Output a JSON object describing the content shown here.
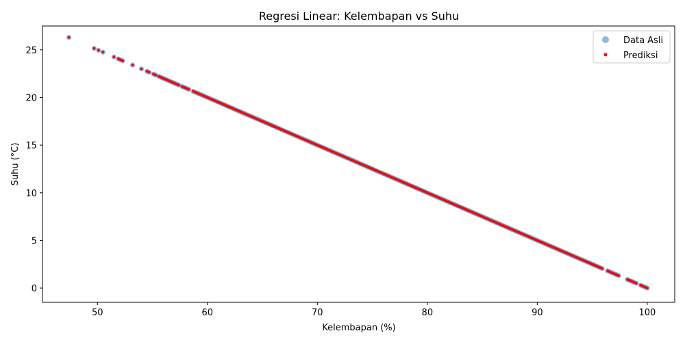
{
  "chart_data": {
    "type": "scatter",
    "title": "Regresi Linear: Kelembapan vs Suhu",
    "xlabel": "Kelembapan (%)",
    "ylabel": "Suhu (°C)",
    "xlim": [
      45,
      102.5
    ],
    "ylim": [
      -1.5,
      27.5
    ],
    "xticks": [
      50,
      60,
      70,
      80,
      90,
      100
    ],
    "yticks": [
      0,
      5,
      10,
      15,
      20,
      25
    ],
    "grid": false,
    "legend_position": "top-right",
    "line": {
      "slope": -0.5,
      "intercept": 50
    },
    "series": [
      {
        "name": "Data Asli",
        "color": "#1f77b4",
        "opacity": 0.5,
        "x": [
          47.4,
          49.7,
          50.1,
          50.5,
          51.5,
          51.9,
          52.1,
          52.3,
          53.2,
          54.0,
          54.5,
          54.7,
          55.1,
          55.3,
          55.6,
          55.8,
          56.0,
          56.2,
          56.4,
          56.6,
          56.8,
          57.0,
          57.2,
          57.4,
          57.7,
          57.9,
          58.1,
          58.3,
          58.7,
          58.9,
          59.1,
          59.3,
          59.5,
          59.7,
          59.9,
          60.1,
          60.3,
          60.5,
          60.7,
          60.9,
          61.1,
          61.3,
          61.5,
          61.7,
          61.9,
          62.1,
          62.3,
          62.5,
          62.7,
          62.9,
          63.1,
          63.3,
          63.5,
          63.7,
          63.9,
          64.1,
          64.3,
          64.5,
          64.7,
          64.9,
          65.1,
          65.3,
          65.5,
          65.7,
          65.9,
          66.1,
          66.3,
          66.5,
          66.7,
          66.9,
          67.1,
          67.3,
          67.5,
          67.7,
          67.9,
          68.1,
          68.3,
          68.5,
          68.7,
          68.9,
          69.1,
          69.3,
          69.5,
          69.7,
          69.9,
          70.1,
          70.3,
          70.5,
          70.7,
          70.9,
          71.1,
          71.3,
          71.5,
          71.7,
          71.9,
          72.1,
          72.3,
          72.5,
          72.7,
          72.9,
          73.1,
          73.3,
          73.5,
          73.7,
          73.9,
          74.1,
          74.3,
          74.5,
          74.7,
          74.9,
          75.1,
          75.3,
          75.5,
          75.7,
          75.9,
          76.1,
          76.3,
          76.5,
          76.7,
          76.9,
          77.1,
          77.3,
          77.5,
          77.7,
          77.9,
          78.1,
          78.3,
          78.5,
          78.7,
          78.9,
          79.1,
          79.3,
          79.5,
          79.7,
          79.9,
          80.1,
          80.3,
          80.5,
          80.7,
          80.9,
          81.1,
          81.3,
          81.5,
          81.7,
          81.9,
          82.1,
          82.3,
          82.5,
          82.7,
          82.9,
          83.1,
          83.3,
          83.5,
          83.7,
          83.9,
          84.1,
          84.3,
          84.5,
          84.7,
          84.9,
          85.1,
          85.3,
          85.5,
          85.7,
          85.9,
          86.1,
          86.3,
          86.5,
          86.7,
          86.9,
          87.1,
          87.3,
          87.5,
          87.7,
          87.9,
          88.1,
          88.3,
          88.5,
          88.7,
          88.9,
          89.1,
          89.3,
          89.5,
          89.7,
          89.9,
          90.1,
          90.3,
          90.5,
          90.7,
          90.9,
          91.1,
          91.3,
          91.5,
          91.7,
          91.9,
          92.1,
          92.3,
          92.5,
          92.7,
          92.9,
          93.1,
          93.3,
          93.5,
          93.7,
          93.9,
          94.1,
          94.3,
          94.5,
          94.7,
          94.9,
          95.1,
          95.3,
          95.5,
          95.7,
          95.9,
          96.4,
          96.6,
          96.8,
          97.0,
          97.2,
          97.4,
          98.2,
          98.4,
          98.6,
          98.8,
          99.0,
          99.4,
          99.6,
          99.8,
          100.0
        ],
        "y": [
          26.3,
          25.15,
          24.95,
          24.75,
          24.25,
          24.05,
          23.95,
          23.85,
          23.4,
          23.0,
          22.75,
          22.65,
          22.45,
          22.35,
          22.2,
          22.1,
          22.0,
          21.9,
          21.8,
          21.7,
          21.6,
          21.5,
          21.4,
          21.3,
          21.15,
          21.05,
          20.95,
          20.85,
          20.65,
          20.55,
          20.45,
          20.35,
          20.25,
          20.15,
          20.05,
          19.95,
          19.85,
          19.75,
          19.65,
          19.55,
          19.45,
          19.35,
          19.25,
          19.15,
          19.05,
          18.95,
          18.85,
          18.75,
          18.65,
          18.55,
          18.45,
          18.35,
          18.25,
          18.15,
          18.05,
          17.95,
          17.85,
          17.75,
          17.65,
          17.55,
          17.45,
          17.35,
          17.25,
          17.15,
          17.05,
          16.95,
          16.85,
          16.75,
          16.65,
          16.55,
          16.45,
          16.35,
          16.25,
          16.15,
          16.05,
          15.95,
          15.85,
          15.75,
          15.65,
          15.55,
          15.45,
          15.35,
          15.25,
          15.15,
          15.05,
          14.95,
          14.85,
          14.75,
          14.65,
          14.55,
          14.45,
          14.35,
          14.25,
          14.15,
          14.05,
          13.95,
          13.85,
          13.75,
          13.65,
          13.55,
          13.45,
          13.35,
          13.25,
          13.15,
          13.05,
          12.95,
          12.85,
          12.75,
          12.65,
          12.55,
          12.45,
          12.35,
          12.25,
          12.15,
          12.05,
          11.95,
          11.85,
          11.75,
          11.65,
          11.55,
          11.45,
          11.35,
          11.25,
          11.15,
          11.05,
          10.95,
          10.85,
          10.75,
          10.65,
          10.55,
          10.45,
          10.35,
          10.25,
          10.15,
          10.05,
          9.95,
          9.85,
          9.75,
          9.65,
          9.55,
          9.45,
          9.35,
          9.25,
          9.15,
          9.05,
          8.95,
          8.85,
          8.75,
          8.65,
          8.55,
          8.45,
          8.35,
          8.25,
          8.15,
          8.05,
          7.95,
          7.85,
          7.75,
          7.65,
          7.55,
          7.45,
          7.35,
          7.25,
          7.15,
          7.05,
          6.95,
          6.85,
          6.75,
          6.65,
          6.55,
          6.45,
          6.35,
          6.25,
          6.15,
          6.05,
          5.95,
          5.85,
          5.75,
          5.65,
          5.55,
          5.45,
          5.35,
          5.25,
          5.15,
          5.05,
          4.95,
          4.85,
          4.75,
          4.65,
          4.55,
          4.45,
          4.35,
          4.25,
          4.15,
          4.05,
          3.95,
          3.85,
          3.75,
          3.65,
          3.55,
          3.45,
          3.35,
          3.25,
          3.15,
          3.05,
          2.95,
          2.85,
          2.75,
          2.65,
          2.55,
          2.45,
          2.35,
          2.25,
          2.15,
          2.05,
          1.8,
          1.7,
          1.6,
          1.5,
          1.4,
          1.3,
          0.9,
          0.8,
          0.7,
          0.6,
          0.5,
          0.3,
          0.2,
          0.1,
          0.0
        ]
      },
      {
        "name": "Prediksi",
        "color": "#ff0000",
        "opacity": 1.0,
        "same_x_as": "Data Asli"
      }
    ]
  }
}
